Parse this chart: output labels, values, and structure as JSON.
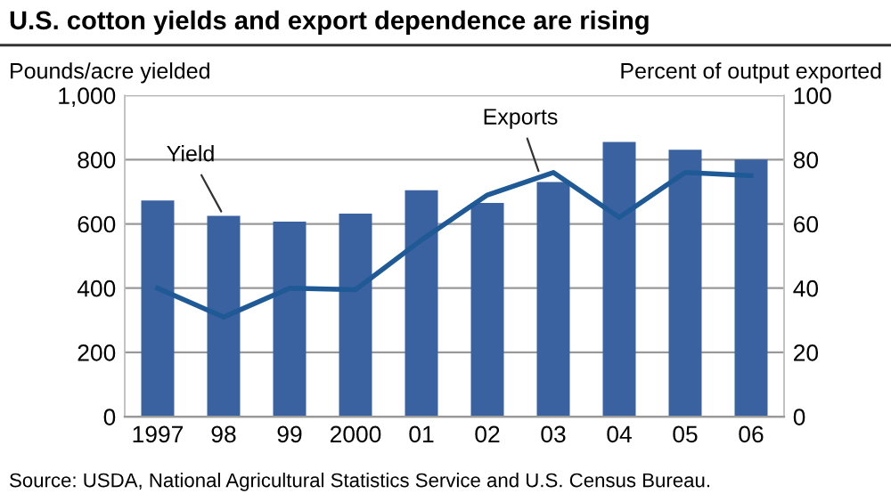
{
  "chart_data": {
    "type": "bar",
    "title": "U.S. cotton yields and export dependence are rising",
    "ylabel": "Pounds/acre yielded",
    "y2label": "Percent of output exported",
    "categories": [
      "1997",
      "98",
      "99",
      "2000",
      "01",
      "02",
      "03",
      "04",
      "05",
      "06"
    ],
    "series": [
      {
        "name": "Yield",
        "color": "#3a62a0",
        "values": [
          673,
          625,
          607,
          632,
          705,
          665,
          730,
          855,
          831,
          800
        ]
      },
      {
        "name": "Exports",
        "type": "line",
        "axis": "y2",
        "color": "#1f5a96",
        "values": [
          40,
          31,
          40,
          39.5,
          55,
          69,
          76,
          62,
          76,
          75
        ]
      }
    ],
    "ylim": [
      0,
      1000
    ],
    "yticks": [
      0,
      200,
      400,
      600,
      800,
      {
        "value": 1000,
        "label": "1,000"
      }
    ],
    "y2lim": [
      0,
      100
    ],
    "y2ticks": [
      0,
      20,
      40,
      60,
      80,
      100
    ],
    "grid": "y",
    "legend": false,
    "marker": "none",
    "annotations": [
      "Source: USDA, National Agricultural Statistics Service and U.S. Census Bureau."
    ]
  }
}
